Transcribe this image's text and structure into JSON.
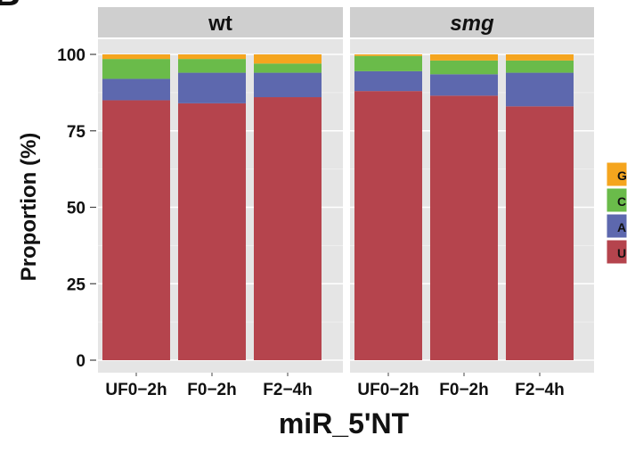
{
  "panel_letter": "B",
  "chart_data": {
    "type": "bar",
    "stacked": true,
    "xlabel": "miR_5'NT",
    "ylabel": "Proportion (%)",
    "ylim": [
      0,
      100
    ],
    "yticks": [
      0,
      25,
      50,
      75,
      100
    ],
    "grid": true,
    "legend_position": "right",
    "colors": {
      "U": "#b5444d",
      "A": "#5d68ae",
      "C": "#6abb4a",
      "G": "#f5a51e"
    },
    "panels": [
      {
        "label": "wt",
        "categories": [
          "UF0−2h",
          "F0−2h",
          "F2−4h"
        ],
        "series": [
          {
            "name": "U",
            "values": [
              85,
              84,
              86
            ]
          },
          {
            "name": "A",
            "values": [
              7,
              10,
              8
            ]
          },
          {
            "name": "C",
            "values": [
              6.5,
              4.5,
              3
            ]
          },
          {
            "name": "G",
            "values": [
              1.5,
              1.5,
              3
            ]
          }
        ]
      },
      {
        "label": "smg",
        "categories": [
          "UF0−2h",
          "F0−2h",
          "F2−4h"
        ],
        "series": [
          {
            "name": "U",
            "values": [
              88,
              86.5,
              83
            ]
          },
          {
            "name": "A",
            "values": [
              6.5,
              7,
              11
            ]
          },
          {
            "name": "C",
            "values": [
              5,
              4.5,
              4
            ]
          },
          {
            "name": "G",
            "values": [
              0.5,
              2,
              2
            ]
          }
        ]
      }
    ],
    "legend": [
      "G",
      "C",
      "A",
      "U"
    ]
  }
}
